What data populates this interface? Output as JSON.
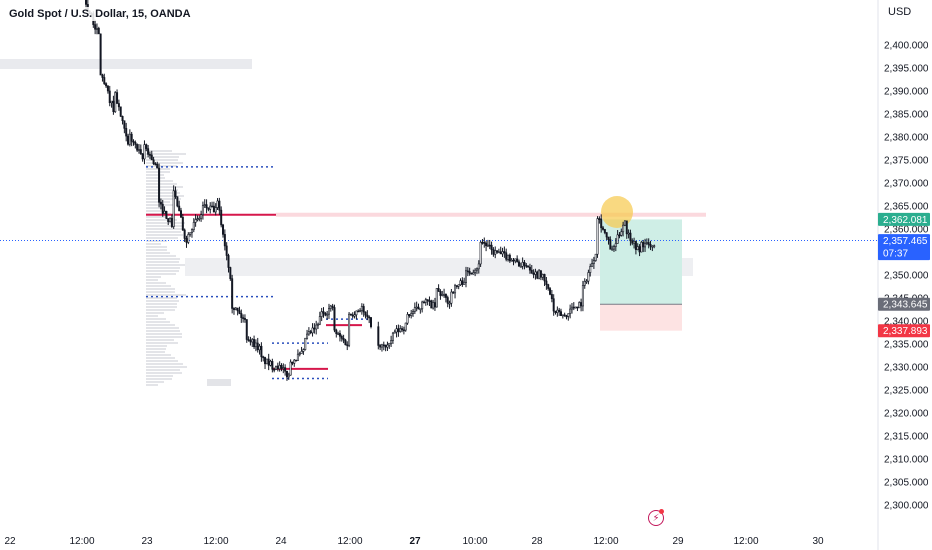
{
  "header": {
    "symbol_title": "Gold Spot / U.S. Dollar, 15, OANDA",
    "currency": "USD"
  },
  "colors": {
    "up_tag": "#2bae8f",
    "last_price_tag": "#2962ff",
    "gray_tag": "#6a6d78",
    "stop_tag": "#f23645",
    "resistance_line": "#d6174b",
    "dotted_level": "#2a4fbd",
    "target_zone": "#cfeee6",
    "stop_zone": "#fde3e3",
    "highlight_circle": "#f7c94c"
  },
  "chart_data": {
    "type": "candlestick",
    "symbol": "Gold Spot / U.S. Dollar",
    "interval": "15",
    "source": "OANDA",
    "currency": "USD",
    "y_range": [
      2298,
      2410
    ],
    "price_ticks": [
      "2,400.000",
      "2,395.000",
      "2,390.000",
      "2,385.000",
      "2,380.000",
      "2,375.000",
      "2,370.000",
      "2,365.000",
      "2,360.000",
      "2,355.000",
      "2,350.000",
      "2,345.000",
      "2,340.000",
      "2,335.000",
      "2,330.000",
      "2,325.000",
      "2,320.000",
      "2,315.000",
      "2,310.000",
      "2,305.000",
      "2,300.000"
    ],
    "time_ticks": [
      {
        "label": "22",
        "bold": false
      },
      {
        "label": "12:00",
        "bold": false
      },
      {
        "label": "23",
        "bold": false
      },
      {
        "label": "12:00",
        "bold": false
      },
      {
        "label": "24",
        "bold": false
      },
      {
        "label": "12:00",
        "bold": false
      },
      {
        "label": "27",
        "bold": true
      },
      {
        "label": "10:00",
        "bold": false
      },
      {
        "label": "28",
        "bold": false
      },
      {
        "label": "12:00",
        "bold": false
      },
      {
        "label": "29",
        "bold": false
      },
      {
        "label": "12:00",
        "bold": false
      },
      {
        "label": "30",
        "bold": false
      }
    ],
    "price_path": [
      [
        2410,
        2402
      ],
      [
        2395,
        2386
      ],
      [
        2391,
        2378
      ],
      [
        2381,
        2375
      ],
      [
        2379,
        2373
      ],
      [
        2366,
        2361
      ],
      [
        2370,
        2357
      ],
      [
        2359,
        2363
      ],
      [
        2365,
        2364
      ],
      [
        2368,
        2350
      ],
      [
        2344,
        2340
      ],
      [
        2337,
        2334
      ],
      [
        2332,
        2330
      ],
      [
        2331,
        2328
      ],
      [
        2331,
        2333
      ],
      [
        2336,
        2339
      ],
      [
        2341,
        2343
      ],
      [
        2338,
        2335
      ],
      [
        2341,
        2343
      ],
      [
        2342,
        2338
      ],
      [
        2334,
        2335
      ],
      [
        2337,
        2339
      ],
      [
        2341,
        2343
      ],
      [
        2345,
        2343
      ],
      [
        2347,
        2344
      ],
      [
        2346,
        2349
      ],
      [
        2350,
        2352
      ],
      [
        2358,
        2355
      ],
      [
        2355,
        2354
      ],
      [
        2354,
        2352
      ],
      [
        2353,
        2350
      ],
      [
        2352,
        2345
      ],
      [
        2342,
        2341
      ],
      [
        2342,
        2344
      ],
      [
        2346,
        2355
      ],
      [
        2364,
        2356
      ],
      [
        2354,
        2362
      ],
      [
        2360,
        2355
      ],
      [
        2357,
        2356
      ]
    ],
    "levels": {
      "resistance_line": 2363.1,
      "upper_dotted_level": 2373.5,
      "lower_dotted_level": 2345.3,
      "consolidation_top_dotted": 2340.4,
      "base_upper_dotted": 2335.2,
      "base_lower_dotted": 2327.5,
      "base_red_line": 2329.6,
      "mid_red_line": 2339.1,
      "current_price_dotted": 2357.5
    },
    "position": {
      "entry": 2343.645,
      "target": 2362.081,
      "stop": 2337.893
    },
    "price_tags": [
      {
        "value": "2,362.081",
        "kind": "target"
      },
      {
        "value": "2,357.465",
        "sub": "07:37",
        "kind": "last_price"
      },
      {
        "value": "2,343.645",
        "kind": "entry"
      },
      {
        "value": "2,337.893",
        "kind": "stop"
      }
    ]
  }
}
